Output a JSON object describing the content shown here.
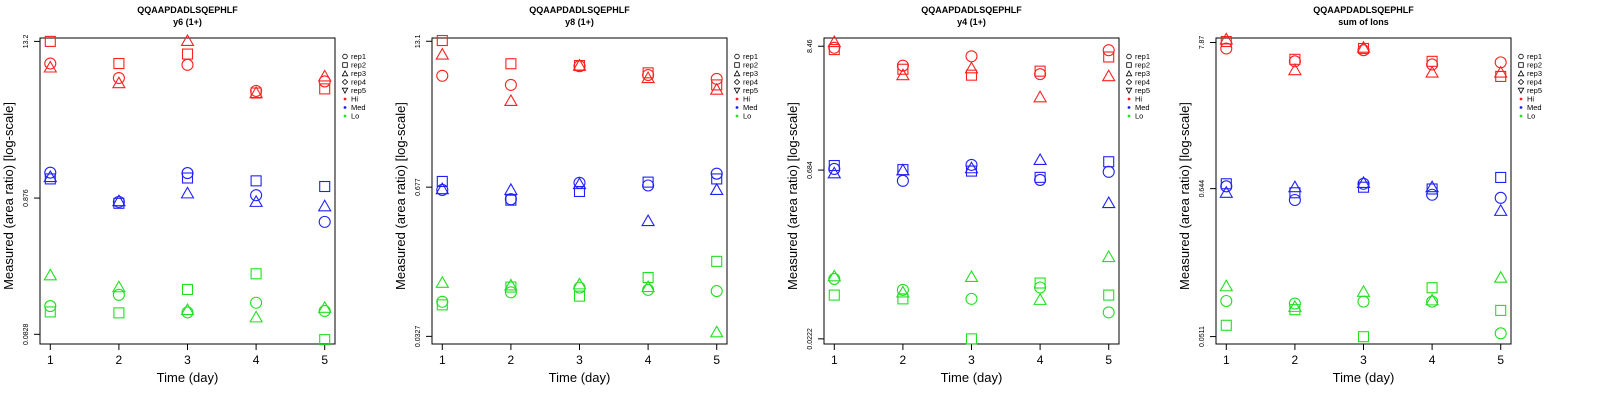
{
  "colors": {
    "Hi": "#ff2020",
    "Med": "#2020ff",
    "Lo": "#20e020"
  },
  "legend": {
    "reps": [
      {
        "label": "rep1",
        "shape": "circle"
      },
      {
        "label": "rep2",
        "shape": "square"
      },
      {
        "label": "rep3",
        "shape": "triangle-up"
      },
      {
        "label": "rep4",
        "shape": "diamond"
      },
      {
        "label": "rep5",
        "shape": "triangle-down"
      }
    ],
    "levels": [
      "Hi",
      "Med",
      "Lo"
    ]
  },
  "chart_data": [
    {
      "type": "scatter",
      "title": "QQAAPDADLSQEPHLF",
      "subtitle": "y6 (1+)",
      "xlabel": "Time (day)",
      "ylabel": "Measured (area ratio) [log-scale]",
      "scale": "log",
      "yticks": [
        "13.2",
        "0.876",
        "0.0828"
      ],
      "ytick_values": [
        13.2,
        0.876,
        0.0828
      ],
      "ylim": [
        0.07,
        14
      ],
      "x": [
        1,
        2,
        3,
        4,
        5
      ],
      "grid": false,
      "legend_position": "right",
      "series": [
        {
          "level": "Hi",
          "rep": "rep1",
          "values": [
            9.0,
            7.0,
            8.8,
            5.6,
            6.6
          ]
        },
        {
          "level": "Hi",
          "rep": "rep2",
          "values": [
            13.2,
            9.0,
            10.6,
            5.4,
            5.8
          ]
        },
        {
          "level": "Hi",
          "rep": "rep3",
          "values": [
            8.4,
            6.4,
            13.3,
            5.4,
            7.2
          ]
        },
        {
          "level": "Med",
          "rep": "rep1",
          "values": [
            1.36,
            0.82,
            1.35,
            0.92,
            0.58
          ]
        },
        {
          "level": "Med",
          "rep": "rep2",
          "values": [
            1.22,
            0.8,
            1.24,
            1.18,
            1.07
          ]
        },
        {
          "level": "Med",
          "rep": "rep3",
          "values": [
            1.26,
            0.83,
            0.95,
            0.82,
            0.76
          ]
        },
        {
          "level": "Lo",
          "rep": "rep1",
          "values": [
            0.135,
            0.164,
            0.121,
            0.143,
            0.124
          ]
        },
        {
          "level": "Lo",
          "rep": "rep2",
          "values": [
            0.122,
            0.12,
            0.18,
            0.236,
            0.0755
          ]
        },
        {
          "level": "Lo",
          "rep": "rep3",
          "values": [
            0.23,
            0.187,
            0.126,
            0.111,
            0.131
          ]
        }
      ]
    },
    {
      "type": "scatter",
      "title": "QQAAPDADLSQEPHLF",
      "subtitle": "y8 (1+)",
      "xlabel": "Time (day)",
      "ylabel": "Measured (area ratio) [log-scale]",
      "scale": "log",
      "yticks": [
        "13.1",
        "0.677",
        "0.0327"
      ],
      "ytick_values": [
        13.1,
        0.677,
        0.0327
      ],
      "ylim": [
        0.028,
        14
      ],
      "x": [
        1,
        2,
        3,
        4,
        5
      ],
      "grid": false,
      "legend_position": "right",
      "series": [
        {
          "level": "Hi",
          "rep": "rep1",
          "values": [
            6.5,
            5.4,
            7.9,
            6.6,
            6.1
          ]
        },
        {
          "level": "Hi",
          "rep": "rep2",
          "values": [
            13.3,
            8.3,
            8.0,
            6.9,
            5.4
          ]
        },
        {
          "level": "Hi",
          "rep": "rep3",
          "values": [
            10.0,
            3.9,
            8.0,
            6.2,
            4.9
          ]
        },
        {
          "level": "Med",
          "rep": "rep1",
          "values": [
            0.64,
            0.53,
            0.74,
            0.7,
            0.89
          ]
        },
        {
          "level": "Med",
          "rep": "rep2",
          "values": [
            0.76,
            0.52,
            0.62,
            0.75,
            0.8
          ]
        },
        {
          "level": "Med",
          "rep": "rep3",
          "values": [
            0.65,
            0.64,
            0.72,
            0.34,
            0.64
          ]
        },
        {
          "level": "Lo",
          "rep": "rep1",
          "values": [
            0.066,
            0.08,
            0.088,
            0.084,
            0.082
          ]
        },
        {
          "level": "Lo",
          "rep": "rep2",
          "values": [
            0.062,
            0.089,
            0.074,
            0.108,
            0.15
          ]
        },
        {
          "level": "Lo",
          "rep": "rep3",
          "values": [
            0.097,
            0.092,
            0.094,
            0.089,
            0.0355
          ]
        }
      ]
    },
    {
      "type": "scatter",
      "title": "QQAAPDADLSQEPHLF",
      "subtitle": "y4 (1+)",
      "xlabel": "Time (day)",
      "ylabel": "Measured (area ratio) [log-scale]",
      "scale": "log",
      "yticks": [
        "8.46",
        "0.684",
        "0.0222"
      ],
      "ytick_values": [
        8.46,
        0.684,
        0.0222
      ],
      "ylim": [
        0.02,
        10
      ],
      "x": [
        1,
        2,
        3,
        4,
        5
      ],
      "grid": false,
      "legend_position": "right",
      "series": [
        {
          "level": "Hi",
          "rep": "rep1",
          "values": [
            8.2,
            5.7,
            6.9,
            4.8,
            7.8
          ]
        },
        {
          "level": "Hi",
          "rep": "rep2",
          "values": [
            7.9,
            5.3,
            4.7,
            5.1,
            6.8
          ]
        },
        {
          "level": "Hi",
          "rep": "rep3",
          "values": [
            9.2,
            4.7,
            5.4,
            3.0,
            4.6
          ]
        },
        {
          "level": "Med",
          "rep": "rep1",
          "values": [
            0.7,
            0.55,
            0.76,
            0.56,
            0.66
          ]
        },
        {
          "level": "Med",
          "rep": "rep2",
          "values": [
            0.75,
            0.69,
            0.67,
            0.59,
            0.81
          ]
        },
        {
          "level": "Med",
          "rep": "rep3",
          "values": [
            0.64,
            0.68,
            0.71,
            0.84,
            0.35
          ]
        },
        {
          "level": "Lo",
          "rep": "rep1",
          "values": [
            0.075,
            0.06,
            0.05,
            0.063,
            0.038
          ]
        },
        {
          "level": "Lo",
          "rep": "rep2",
          "values": [
            0.054,
            0.05,
            0.0222,
            0.069,
            0.054
          ]
        },
        {
          "level": "Lo",
          "rep": "rep3",
          "values": [
            0.079,
            0.057,
            0.078,
            0.049,
            0.117
          ]
        }
      ]
    },
    {
      "type": "scatter",
      "title": "QQAAPDADLSQEPHLF",
      "subtitle": "sum of Ions",
      "xlabel": "Time (day)",
      "ylabel": "Measured (area ratio) [log-scale]",
      "scale": "log",
      "yticks": [
        "7.87",
        "0.644",
        "0.0511"
      ],
      "ytick_values": [
        7.87,
        0.644,
        0.0511
      ],
      "ylim": [
        0.045,
        8.5
      ],
      "x": [
        1,
        2,
        3,
        4,
        5
      ],
      "grid": false,
      "legend_position": "right",
      "series": [
        {
          "level": "Hi",
          "rep": "rep1",
          "values": [
            7.1,
            5.7,
            6.9,
            5.4,
            5.6
          ]
        },
        {
          "level": "Hi",
          "rep": "rep2",
          "values": [
            8.0,
            5.9,
            7.1,
            5.7,
            4.4
          ]
        },
        {
          "level": "Hi",
          "rep": "rep3",
          "values": [
            8.3,
            4.9,
            7.2,
            4.7,
            4.7
          ]
        },
        {
          "level": "Med",
          "rep": "rep1",
          "values": [
            0.67,
            0.53,
            0.7,
            0.58,
            0.55
          ]
        },
        {
          "level": "Med",
          "rep": "rep2",
          "values": [
            0.7,
            0.6,
            0.66,
            0.64,
            0.78
          ]
        },
        {
          "level": "Med",
          "rep": "rep3",
          "values": [
            0.6,
            0.66,
            0.71,
            0.66,
            0.44
          ]
        },
        {
          "level": "Lo",
          "rep": "rep1",
          "values": [
            0.094,
            0.09,
            0.093,
            0.093,
            0.054
          ]
        },
        {
          "level": "Lo",
          "rep": "rep2",
          "values": [
            0.062,
            0.081,
            0.051,
            0.118,
            0.08
          ]
        },
        {
          "level": "Lo",
          "rep": "rep3",
          "values": [
            0.121,
            0.085,
            0.11,
            0.095,
            0.14
          ]
        }
      ]
    }
  ]
}
